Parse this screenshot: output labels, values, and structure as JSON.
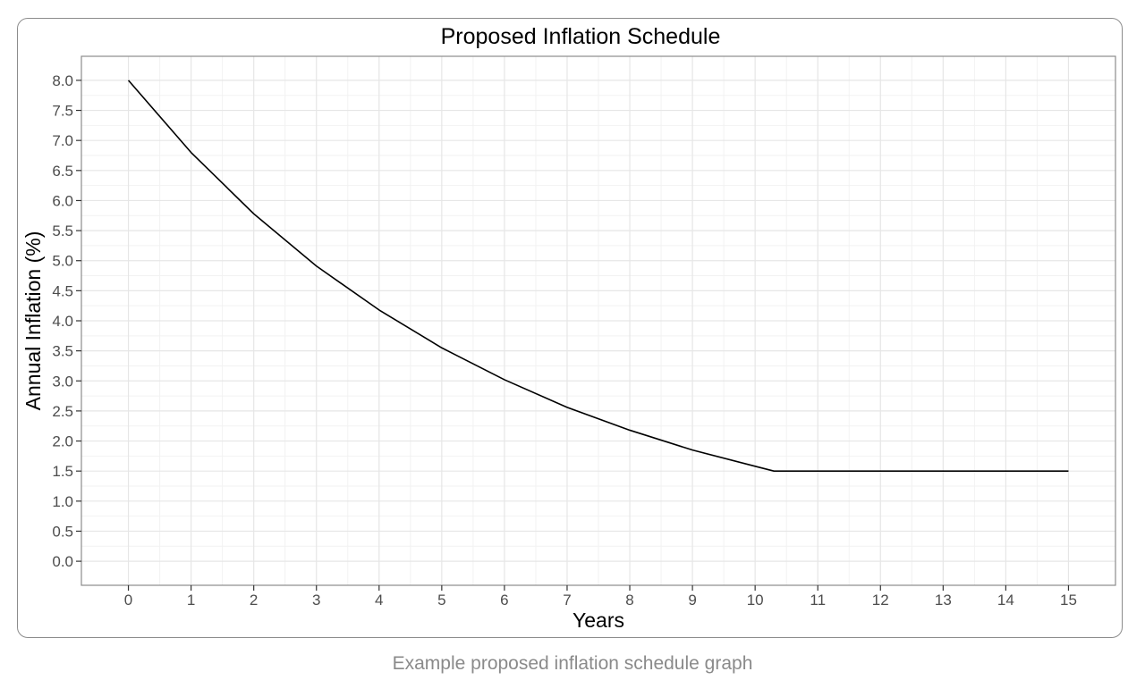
{
  "caption": "Example proposed inflation schedule graph",
  "colors": {
    "line": "#000000",
    "panel_border": "#8c8c8c",
    "grid_major": "#e6e6e6",
    "grid_minor": "#f2f2f2",
    "tick_text": "#4d4d4d",
    "caption_text": "#8a8a8a"
  },
  "chart_data": {
    "type": "line",
    "title": "Proposed Inflation Schedule",
    "xlabel": "Years",
    "ylabel": "Annual Inflation (%)",
    "xlim": [
      -0.75,
      15.75
    ],
    "ylim": [
      -0.4,
      8.4
    ],
    "x_ticks": [
      0,
      1,
      2,
      3,
      4,
      5,
      6,
      7,
      8,
      9,
      10,
      11,
      12,
      13,
      14,
      15
    ],
    "y_ticks": [
      "0.0",
      "0.5",
      "1.0",
      "1.5",
      "2.0",
      "2.5",
      "3.0",
      "3.5",
      "4.0",
      "4.5",
      "5.0",
      "5.5",
      "6.0",
      "6.5",
      "7.0",
      "7.5",
      "8.0"
    ],
    "grid": true,
    "legend": "none",
    "series": [
      {
        "x": [
          0,
          1,
          2,
          3,
          4,
          5,
          6,
          7,
          8,
          9,
          10,
          10.3,
          11,
          12,
          13,
          14,
          15
        ],
        "values": [
          8.0,
          6.8,
          5.78,
          4.91,
          4.18,
          3.55,
          3.02,
          2.56,
          2.18,
          1.85,
          1.58,
          1.5,
          1.5,
          1.5,
          1.5,
          1.5,
          1.5
        ]
      }
    ]
  }
}
